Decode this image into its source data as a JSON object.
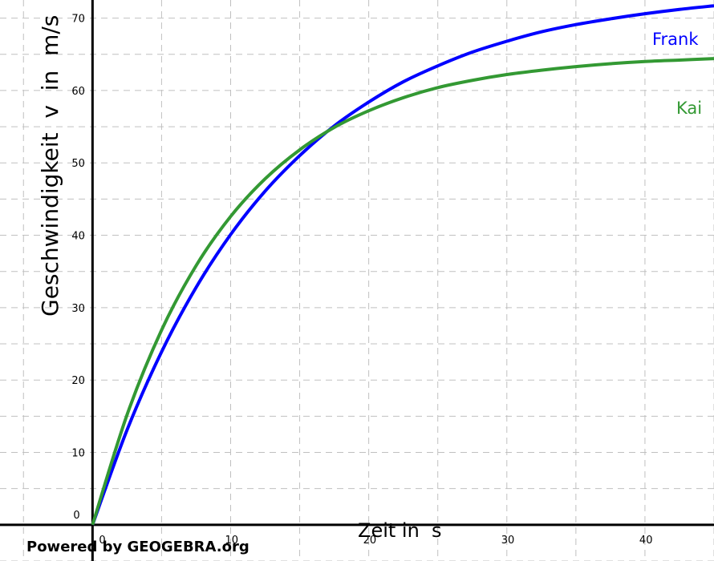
{
  "watermark": "Powered by GEOGEBRA.org",
  "chart_data": {
    "type": "line",
    "title": "",
    "xlabel": "Zeit in  s",
    "ylabel": "Geschwindigkeit  v  in  m/s",
    "xlim": [
      -6.7,
      45
    ],
    "ylim": [
      -5,
      72.5
    ],
    "x_ticks": [
      0,
      10,
      20,
      30,
      40
    ],
    "y_ticks": [
      0,
      10,
      20,
      30,
      40,
      50,
      60,
      70
    ],
    "grid": true,
    "series": [
      {
        "name": "Frank",
        "color": "#0000ff",
        "x": [
          0,
          2.5,
          5,
          7.5,
          10,
          12.5,
          15,
          17.5,
          20,
          22.5,
          25,
          27.5,
          30,
          32.5,
          35,
          37.5,
          40,
          42.5,
          45
        ],
        "y": [
          0,
          13.1,
          23.9,
          32.8,
          40.1,
          46.1,
          51.0,
          55.1,
          58.4,
          61.2,
          63.4,
          65.3,
          66.8,
          68.1,
          69.1,
          69.9,
          70.6,
          71.2,
          71.7
        ]
      },
      {
        "name": "Kai",
        "color": "#339933",
        "x": [
          0,
          2.5,
          5,
          7.5,
          10,
          12.5,
          15,
          17.5,
          20,
          22.5,
          25,
          27.5,
          30,
          32.5,
          35,
          37.5,
          40,
          42.5,
          45
        ],
        "y": [
          0,
          15.2,
          26.9,
          35.8,
          42.6,
          47.8,
          51.8,
          54.9,
          57.2,
          59.0,
          60.4,
          61.4,
          62.2,
          62.8,
          63.3,
          63.7,
          64.0,
          64.2,
          64.4
        ]
      }
    ]
  }
}
